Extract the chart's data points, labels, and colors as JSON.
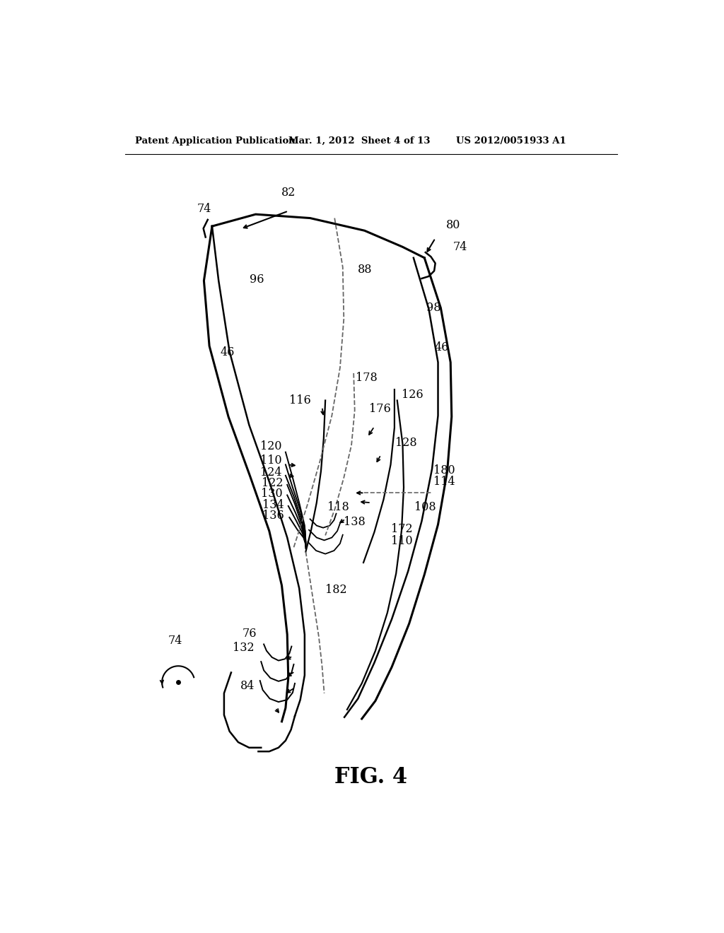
{
  "header_left": "Patent Application Publication",
  "header_mid": "Mar. 1, 2012  Sheet 4 of 13",
  "header_right": "US 2012/0051933 A1",
  "fig_label": "FIG. 4",
  "background_color": "#ffffff",
  "line_color": "#000000",
  "dashed_color": "#666666"
}
